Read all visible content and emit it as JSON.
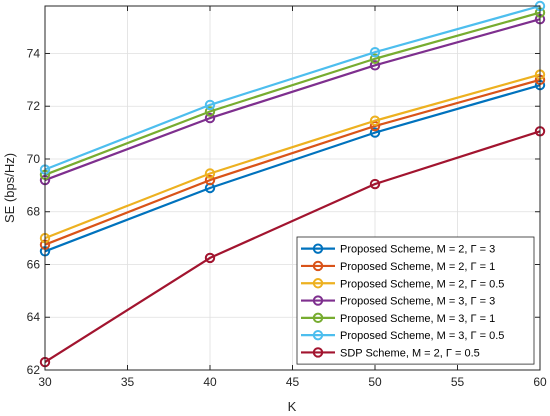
{
  "chart_data": {
    "type": "line",
    "xlabel": "K",
    "ylabel": "SE (bps/Hz)",
    "x": [
      30,
      40,
      50,
      60
    ],
    "xlim": [
      30,
      60
    ],
    "ylim": [
      62,
      75.8
    ],
    "xticks": [
      "30",
      "35",
      "40",
      "45",
      "50",
      "55",
      "60"
    ],
    "yticks": [
      "62",
      "64",
      "66",
      "68",
      "70",
      "72",
      "74"
    ],
    "grid": true,
    "legend_position": "bottom-right",
    "series": [
      {
        "name": "Proposed Scheme, M = 2, Γ = 3",
        "color": "#0072BD",
        "values": [
          66.5,
          68.9,
          71.0,
          72.8
        ]
      },
      {
        "name": "Proposed Scheme, M = 2, Γ = 1",
        "color": "#D95319",
        "values": [
          66.75,
          69.2,
          71.25,
          73.0
        ]
      },
      {
        "name": "Proposed Scheme, M = 2, Γ = 0.5",
        "color": "#EDB120",
        "values": [
          67.0,
          69.45,
          71.45,
          73.2
        ]
      },
      {
        "name": "Proposed Scheme, M = 3, Γ = 3",
        "color": "#7E2F8E",
        "values": [
          69.2,
          71.55,
          73.55,
          75.3
        ]
      },
      {
        "name": "Proposed Scheme, M = 3, Γ = 1",
        "color": "#77AC30",
        "values": [
          69.4,
          71.8,
          73.8,
          75.55
        ]
      },
      {
        "name": "Proposed Scheme, M = 3, Γ = 0.5",
        "color": "#4DBEEE",
        "values": [
          69.6,
          72.05,
          74.05,
          75.8
        ]
      },
      {
        "name": "SDP Scheme, M = 2, Γ = 0.5",
        "color": "#A2142F",
        "values": [
          62.3,
          66.25,
          69.05,
          71.05
        ]
      }
    ]
  }
}
